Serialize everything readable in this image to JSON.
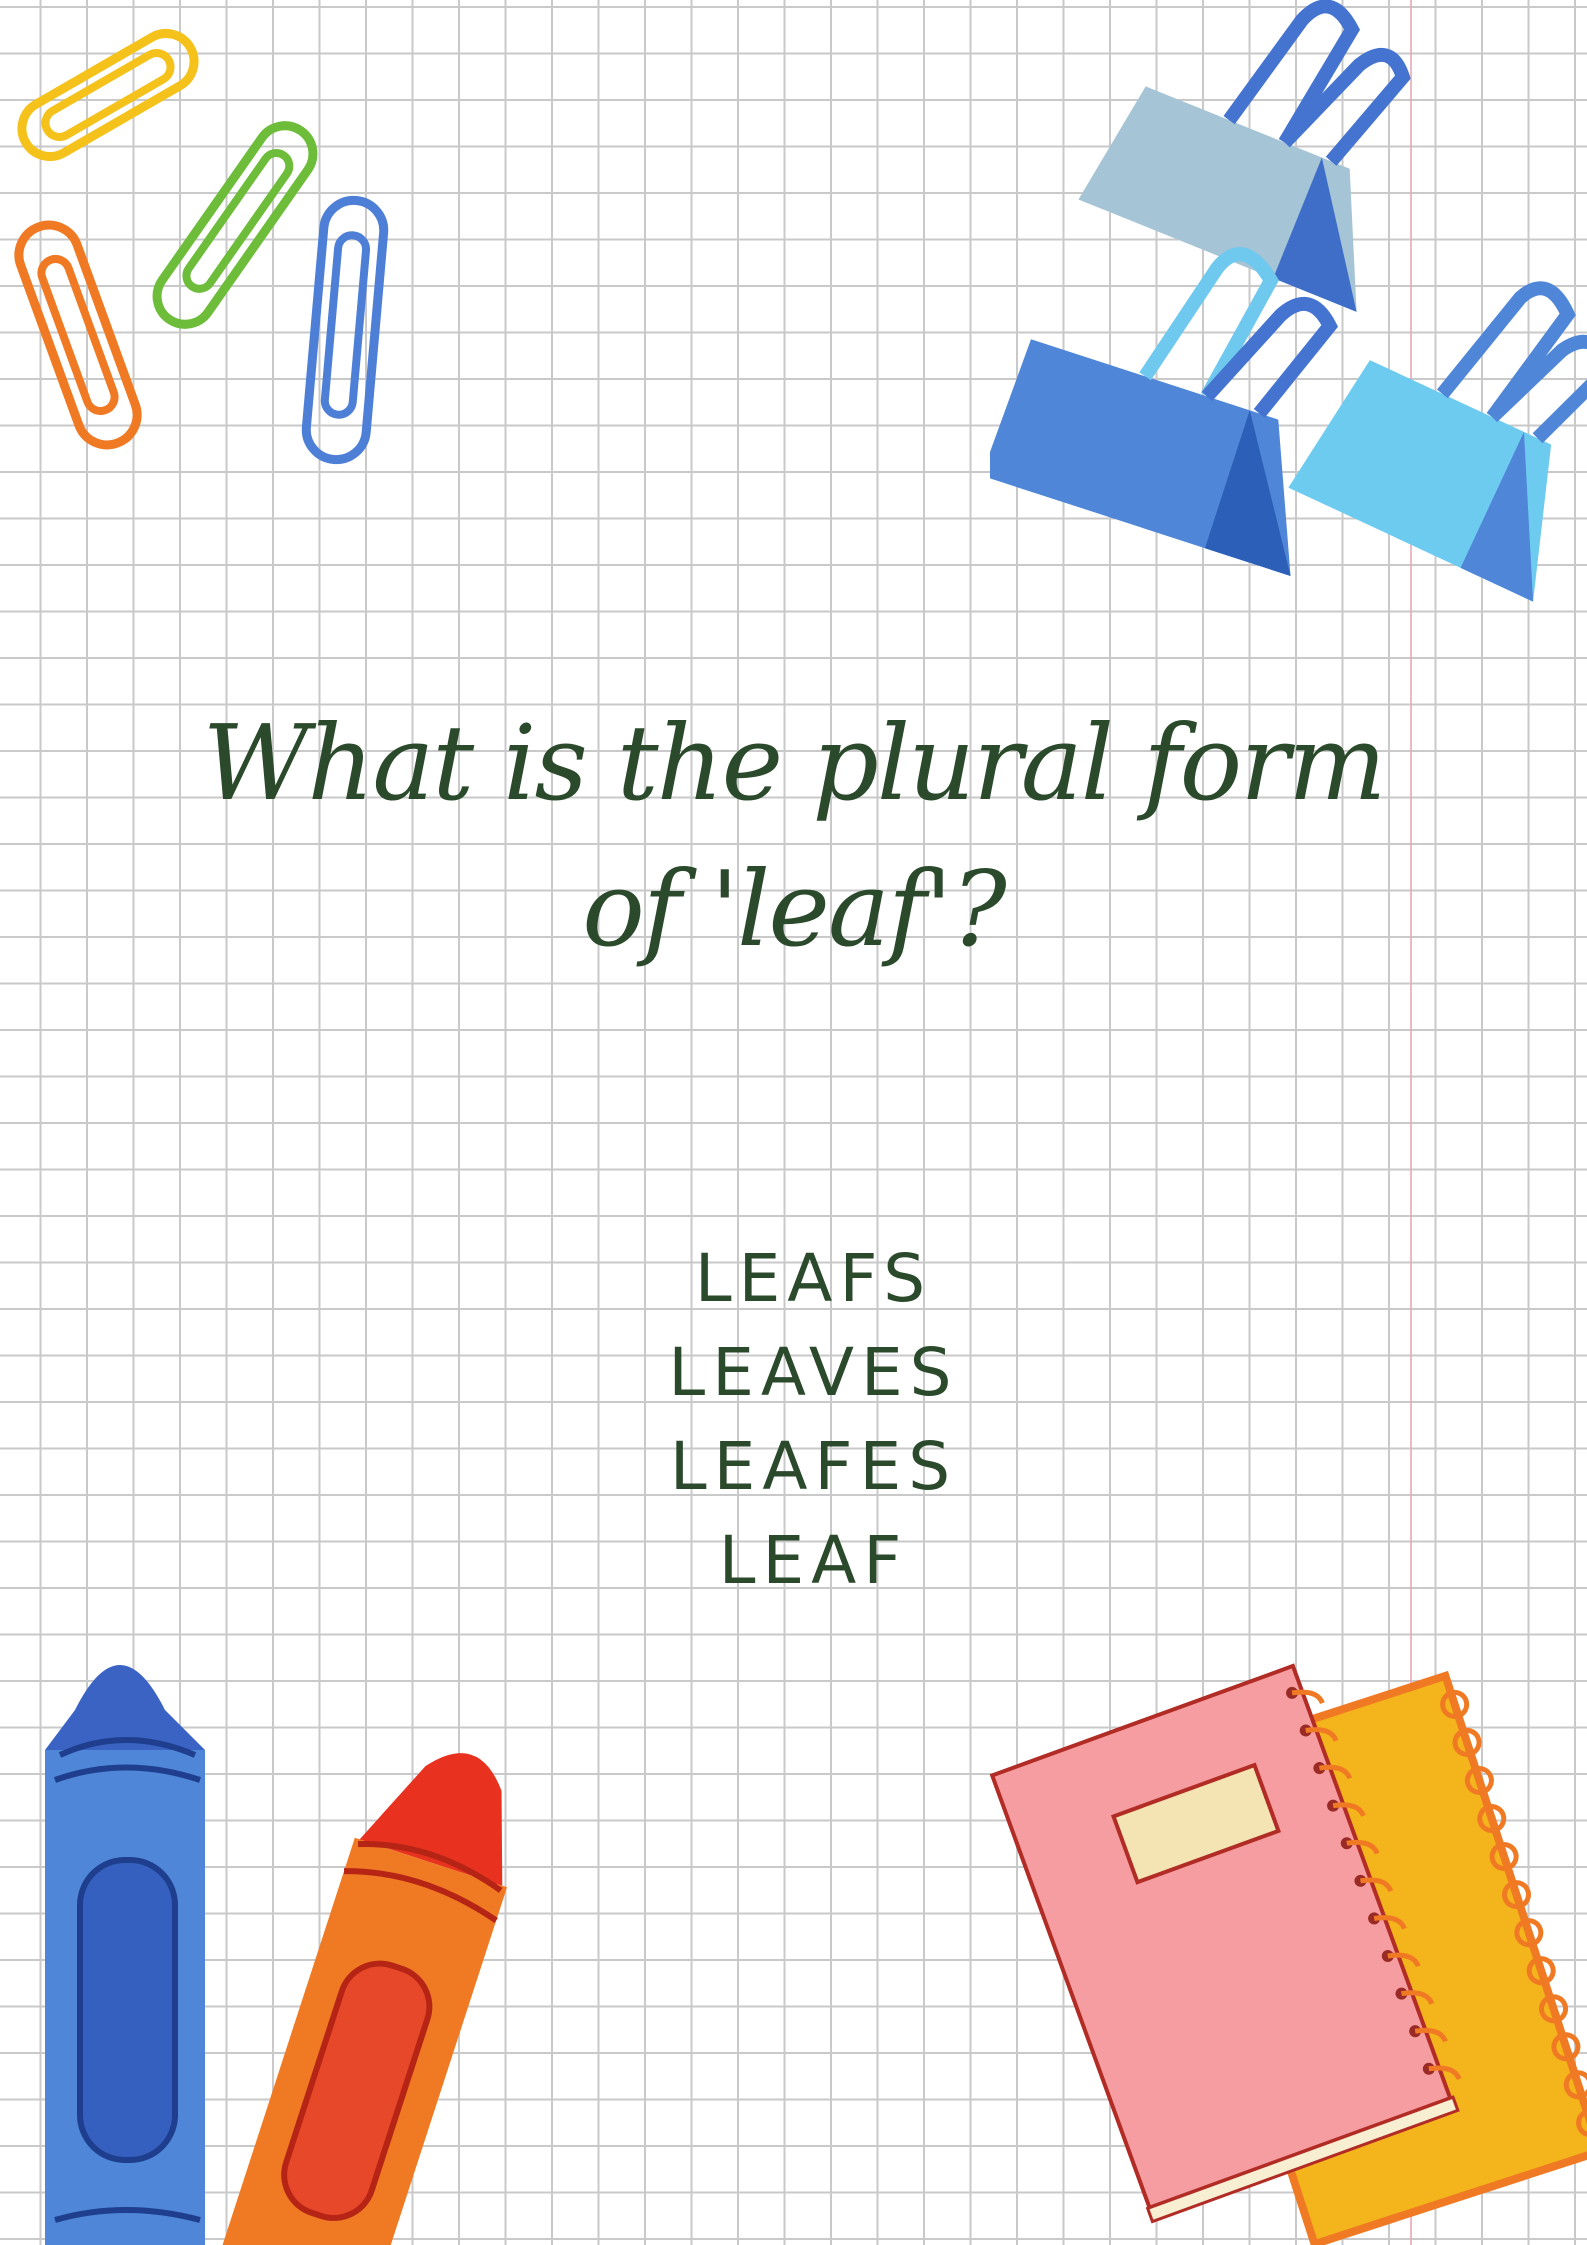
{
  "question": {
    "line1": "What is the plural form",
    "line2": "of 'leaf'?"
  },
  "options": [
    "LEAFS",
    "LEAVES",
    "LEAFES",
    "LEAF"
  ],
  "colors": {
    "text": "#2b4a2c",
    "grid": "#c9c9c9",
    "margin_line": "#e6a9b3"
  },
  "decorations": [
    "paper-clip-icon",
    "binder-clip-icon",
    "crayon-icon",
    "notebook-icon"
  ]
}
